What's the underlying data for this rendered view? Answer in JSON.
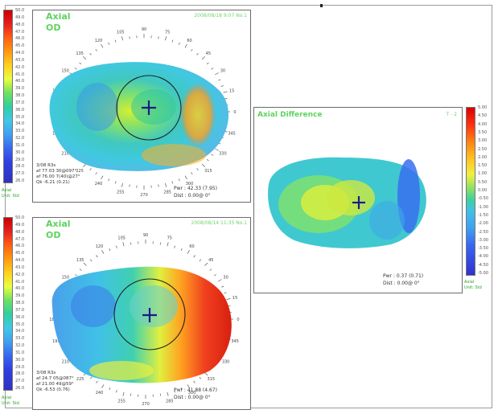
{
  "panels": {
    "top": {
      "title": "Axial",
      "eye": "OD",
      "date": "2008/08/18 9:07 No.1",
      "info": [
        "3/08 R3s",
        "af 77.03 30@097°",
        "af 76.00 7(40)@27°",
        "Qk -6.21 (0.21)"
      ],
      "pwr": "Pwr : 42.33 (7.95)",
      "dist": "Dist : 0.00@ 0°",
      "scale_top": "Axial",
      "scale_bottom": "Unit: Std"
    },
    "bottom": {
      "title": "Axial",
      "eye": "OD",
      "date": "2008/08/14 11:35 No.1",
      "info": [
        "3/08 R3s",
        "af 24.7 05@087°",
        "af 21.00 49@59°",
        "Qk -6.53 (0.76)"
      ],
      "pwr": "Pwr : 41.88 (4.67)",
      "dist": "Dist : 0.00@ 0°",
      "scale_top": "Axial",
      "scale_bottom": "Unit: Std"
    },
    "diff": {
      "title": "Axial Difference",
      "date": "T - 2",
      "pwr": "Pwr : 0.37 (0.71)",
      "dist": "Dist : 0.00@ 0°",
      "scale_top": "Axial",
      "scale_bottom": "Unit: Std"
    }
  },
  "scale_values": [
    "50.0",
    "49.0",
    "48.0",
    "47.0",
    "46.0",
    "45.0",
    "44.0",
    "43.0",
    "42.0",
    "41.0",
    "40.0",
    "39.0",
    "38.0",
    "37.0",
    "36.0",
    "35.0",
    "34.0",
    "33.0",
    "32.0",
    "31.0",
    "30.0",
    "29.0",
    "28.0",
    "27.0",
    "26.0"
  ],
  "diff_scale_values": [
    "5.00",
    "4.50",
    "4.00",
    "3.50",
    "3.00",
    "2.50",
    "2.00",
    "1.50",
    "1.00",
    "0.50",
    "0.00",
    "-0.50",
    "-1.00",
    "-1.50",
    "-2.00",
    "-2.50",
    "-3.00",
    "-3.50",
    "-4.00",
    "-4.50",
    "-5.00"
  ],
  "angle_labels": [
    "90",
    "105",
    "120",
    "135",
    "150",
    "165",
    "180",
    "195",
    "210",
    "225",
    "240",
    "255",
    "270",
    "285",
    "300",
    "315",
    "330",
    "345",
    "0",
    "15",
    "30",
    "45",
    "60",
    "75"
  ],
  "colors": {
    "panel_title": "#5fd35f",
    "crosshair": "#1a1a8c"
  }
}
